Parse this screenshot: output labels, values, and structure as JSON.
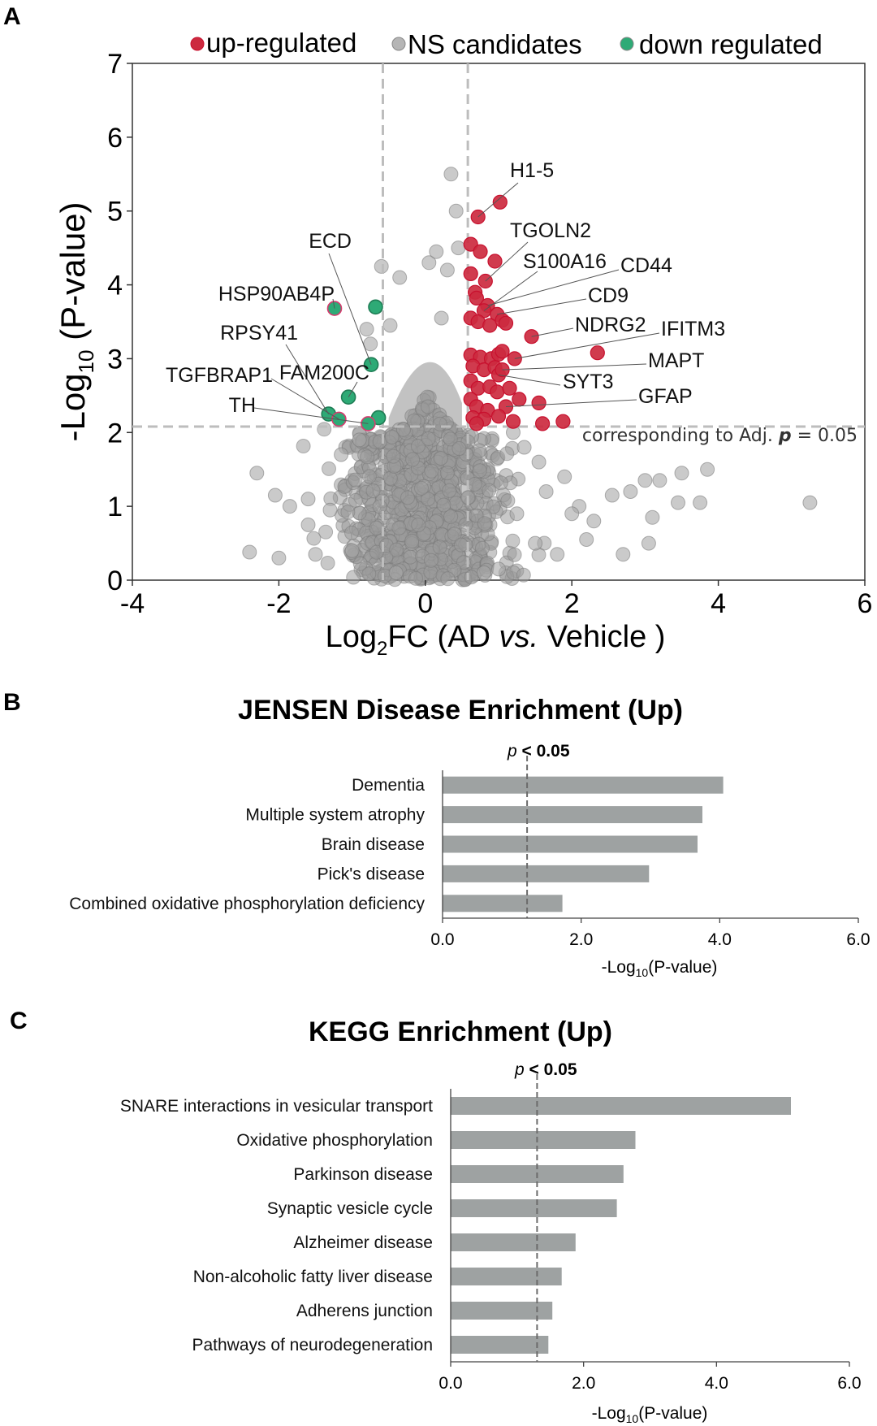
{
  "panels": {
    "A": {
      "letter": "A"
    },
    "B": {
      "letter": "B"
    },
    "C": {
      "letter": "C"
    }
  },
  "colors": {
    "up": "#c8102e",
    "up_fill": "#cc2a3f",
    "down": "#2eaa76",
    "ns": "#8a8a8a",
    "ns_stroke": "#6f6f6f",
    "bar": "#9ea2a2",
    "threshold_line": "#bdbdbd",
    "sig_line": "#6b6b6b"
  },
  "chart_data": [
    {
      "id": "volcano",
      "type": "scatter",
      "title": "",
      "xlabel_parts": {
        "pre": "Log",
        "sub": "2",
        "post": "FC (AD ",
        "ital": "vs.",
        "end": " Vehicle )"
      },
      "ylabel_parts": {
        "pre": "-Log",
        "sub": "10",
        "post": " (P-value)"
      },
      "xlim": [
        -4,
        6
      ],
      "ylim": [
        0,
        7
      ],
      "xticks": [
        -4,
        -2,
        0,
        2,
        4,
        6
      ],
      "yticks": [
        0,
        1,
        2,
        3,
        4,
        5,
        6,
        7
      ],
      "legend": {
        "position": "top",
        "entries": [
          {
            "label": "up-regulated",
            "color_key": "up"
          },
          {
            "label": "NS candidates",
            "color_key": "ns"
          },
          {
            "label": "down regulated",
            "color_key": "down"
          }
        ]
      },
      "thresholds": {
        "x": [
          -0.58,
          0.58
        ],
        "y": 2.08
      },
      "threshold_label": {
        "pre": "corresponding to Adj. ",
        "bold": "p",
        "post": " = 0.05"
      },
      "series": [
        {
          "name": "up-regulated",
          "points": [
            [
              0.72,
              4.92
            ],
            [
              1.02,
              5.12
            ],
            [
              0.62,
              4.55
            ],
            [
              0.75,
              4.45
            ],
            [
              0.95,
              4.32
            ],
            [
              0.62,
              4.15
            ],
            [
              0.82,
              4.05
            ],
            [
              0.68,
              3.9
            ],
            [
              0.7,
              3.82
            ],
            [
              0.85,
              3.72
            ],
            [
              0.8,
              3.65
            ],
            [
              0.98,
              3.6
            ],
            [
              0.62,
              3.55
            ],
            [
              0.72,
              3.5
            ],
            [
              0.88,
              3.45
            ],
            [
              1.05,
              3.52
            ],
            [
              1.1,
              3.48
            ],
            [
              1.45,
              3.3
            ],
            [
              2.35,
              3.08
            ],
            [
              0.62,
              3.05
            ],
            [
              0.75,
              3.02
            ],
            [
              0.9,
              3.0
            ],
            [
              1.0,
              3.06
            ],
            [
              1.05,
              3.1
            ],
            [
              1.22,
              3.0
            ],
            [
              0.65,
              2.9
            ],
            [
              0.8,
              2.85
            ],
            [
              0.95,
              2.88
            ],
            [
              1.0,
              2.78
            ],
            [
              1.05,
              2.85
            ],
            [
              0.62,
              2.7
            ],
            [
              0.72,
              2.6
            ],
            [
              0.88,
              2.62
            ],
            [
              0.98,
              2.55
            ],
            [
              1.15,
              2.6
            ],
            [
              1.28,
              2.45
            ],
            [
              1.55,
              2.4
            ],
            [
              0.62,
              2.45
            ],
            [
              0.7,
              2.35
            ],
            [
              0.85,
              2.3
            ],
            [
              1.1,
              2.35
            ],
            [
              0.65,
              2.2
            ],
            [
              0.8,
              2.18
            ],
            [
              1.0,
              2.22
            ],
            [
              1.2,
              2.15
            ],
            [
              1.6,
              2.12
            ],
            [
              1.88,
              2.15
            ],
            [
              0.7,
              2.12
            ]
          ]
        },
        {
          "name": "down regulated",
          "points": [
            [
              -1.24,
              3.68
            ],
            [
              -0.68,
              3.7
            ],
            [
              -0.74,
              2.92
            ],
            [
              -1.05,
              2.48
            ],
            [
              -1.32,
              2.25
            ],
            [
              -1.18,
              2.18
            ],
            [
              -0.64,
              2.2
            ],
            [
              -0.78,
              2.12
            ]
          ]
        }
      ],
      "gene_labels": [
        {
          "text": "H1-5",
          "x": 0.72,
          "y": 4.92
        },
        {
          "text": "TGOLN2",
          "x": 0.82,
          "y": 4.05
        },
        {
          "text": "S100A16",
          "x": 0.8,
          "y": 3.65
        },
        {
          "text": "CD44",
          "x": 0.85,
          "y": 3.72
        },
        {
          "text": "CD9",
          "x": 0.98,
          "y": 3.6
        },
        {
          "text": "NDRG2",
          "x": 1.45,
          "y": 3.3
        },
        {
          "text": "IFITM3",
          "x": 1.22,
          "y": 3.0
        },
        {
          "text": "MAPT",
          "x": 1.05,
          "y": 2.85
        },
        {
          "text": "SYT3",
          "x": 1.0,
          "y": 2.78
        },
        {
          "text": "GFAP",
          "x": 1.1,
          "y": 2.35
        },
        {
          "text": "ECD",
          "x": -0.74,
          "y": 2.92
        },
        {
          "text": "HSP90AB4P",
          "x": -1.24,
          "y": 3.68
        },
        {
          "text": "RPSY41",
          "x": -1.32,
          "y": 2.25
        },
        {
          "text": "FAM200C",
          "x": -1.05,
          "y": 2.48
        },
        {
          "text": "TGFBRAP1",
          "x": -1.18,
          "y": 2.18
        },
        {
          "text": "TH",
          "x": -0.78,
          "y": 2.12
        }
      ]
    },
    {
      "id": "jensen",
      "type": "bar",
      "orientation": "horizontal",
      "title": "JENSEN Disease Enrichment (Up)",
      "categories": [
        "Dementia",
        "Multiple system atrophy",
        "Brain disease",
        "Pick's disease",
        "Combined oxidative phosphorylation deficiency"
      ],
      "values": [
        4.05,
        3.75,
        3.68,
        2.98,
        1.73
      ],
      "xlim": [
        0,
        6
      ],
      "xticks": [
        "0.0",
        "2.0",
        "4.0",
        "6.0"
      ],
      "xlabel_parts": {
        "pre": "-Log",
        "sub": "10",
        "post": "(P-value)"
      },
      "sig_line": 1.22,
      "sig_label": {
        "ital": "p",
        "bold": " < 0.05"
      }
    },
    {
      "id": "kegg",
      "type": "bar",
      "orientation": "horizontal",
      "title": "KEGG Enrichment (Up)",
      "categories": [
        "SNARE interactions in vesicular transport",
        "Oxidative phosphorylation",
        "Parkinson disease",
        "Synaptic vesicle cycle",
        "Alzheimer disease",
        "Non-alcoholic fatty liver disease",
        "Adherens junction",
        "Pathways of neurodegeneration"
      ],
      "values": [
        5.12,
        2.78,
        2.6,
        2.5,
        1.88,
        1.67,
        1.53,
        1.47
      ],
      "xlim": [
        0,
        6
      ],
      "xticks": [
        "0.0",
        "2.0",
        "4.0",
        "6.0"
      ],
      "xlabel_parts": {
        "pre": "-Log",
        "sub": "10",
        "post": "(P-value)"
      },
      "sig_line": 1.3,
      "sig_label": {
        "ital": "p",
        "bold": " < 0.05"
      }
    }
  ]
}
